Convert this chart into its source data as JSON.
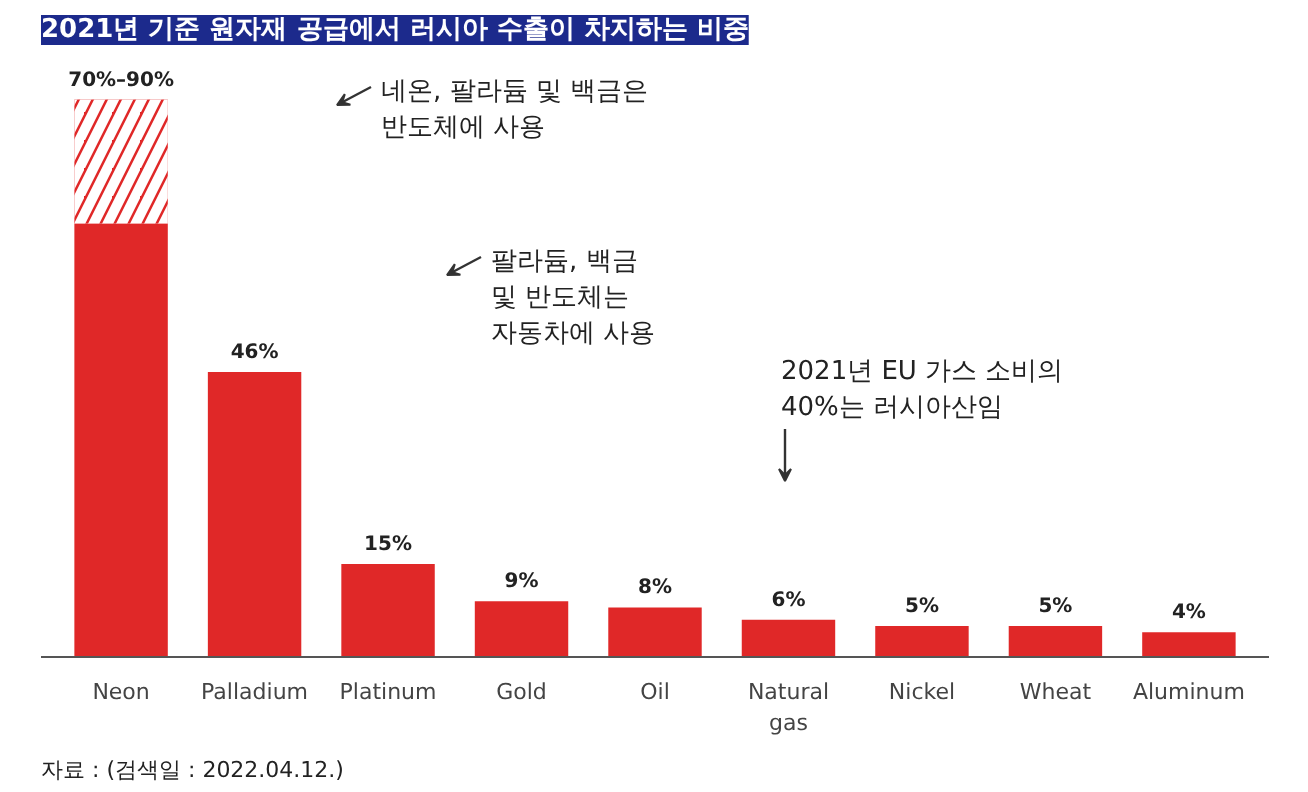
{
  "chart_data": {
    "type": "bar",
    "title": "2021년 기준 원자재 공급에서 러시아 수출이 차지하는 비중",
    "categories": [
      "Neon",
      "Palladium",
      "Platinum",
      "Gold",
      "Oil",
      "Natural gas",
      "Nickel",
      "Wheat",
      "Aluminum"
    ],
    "stacked": true,
    "series": [
      {
        "color": "#e02828",
        "values": [
          70,
          46,
          15,
          9,
          8,
          6,
          5,
          5,
          4
        ],
        "value_labels": [
          null,
          "46%",
          "15%",
          "9%",
          "8%",
          "6%",
          "5%",
          "5%",
          "4%"
        ]
      },
      {
        "color": "#e02828",
        "values": [
          20,
          null,
          null,
          null,
          null,
          null,
          null,
          null,
          null
        ]
      }
    ],
    "totals": [
      "70%–90%",
      null,
      null,
      null,
      null,
      null,
      null,
      null,
      null
    ],
    "tick_labels": "x",
    "annotations": [
      "네온, 팔라듐 및 백금은\n반도체에 사용",
      "팔라듐, 백금\n및 반도체는\n자동차에 사용",
      "2021년 EU 가스 소비의\n40%는 러시아산임",
      "자료 : (검색일 : 2022.04.12.)"
    ]
  }
}
